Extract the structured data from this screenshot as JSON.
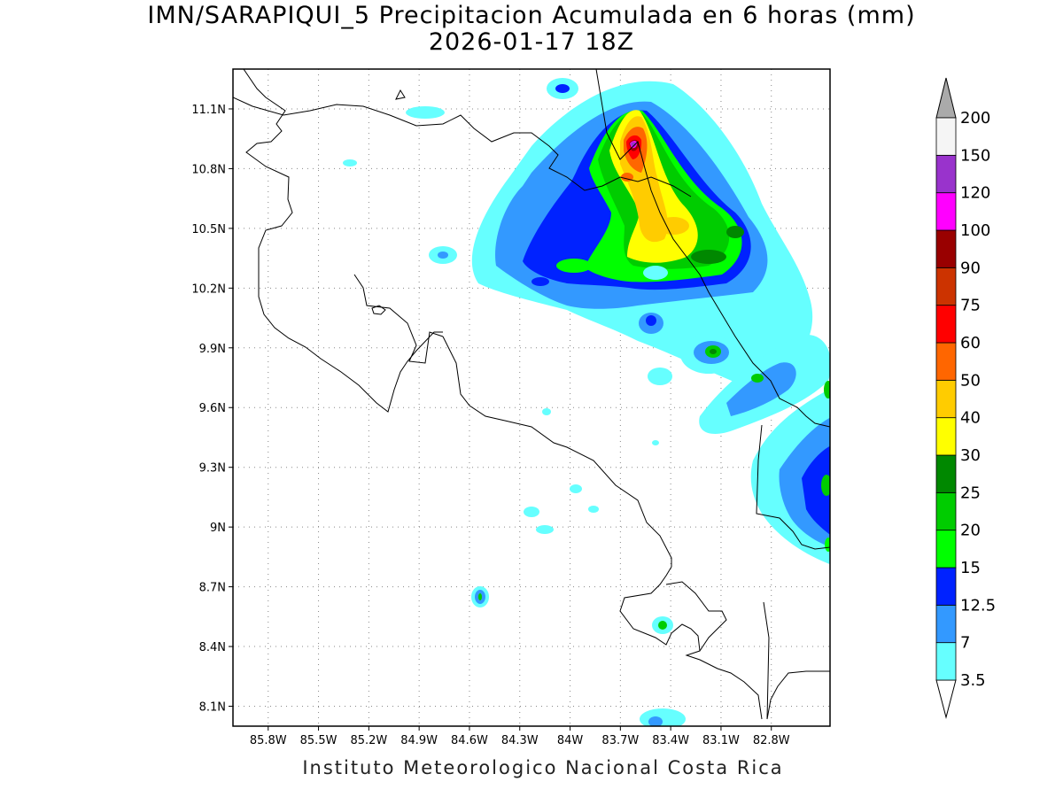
{
  "header": {
    "title_line1": "IMN/SARAPIQUI_5 Precipitacion Acumulada en 6 horas (mm)",
    "title_line2": "2026-01-17 18Z"
  },
  "footer": {
    "credit": "Instituto Meteorologico Nacional Costa Rica"
  },
  "map": {
    "lon_range": [
      -86.01,
      -82.45
    ],
    "lat_range": [
      8.0,
      11.3
    ],
    "lat_ticks": [
      {
        "value": 11.1,
        "label": "11.1N"
      },
      {
        "value": 10.8,
        "label": "10.8N"
      },
      {
        "value": 10.5,
        "label": "10.5N"
      },
      {
        "value": 10.2,
        "label": "10.2N"
      },
      {
        "value": 9.9,
        "label": "9.9N"
      },
      {
        "value": 9.6,
        "label": "9.6N"
      },
      {
        "value": 9.3,
        "label": "9.3N"
      },
      {
        "value": 9.0,
        "label": "9N"
      },
      {
        "value": 8.7,
        "label": "8.7N"
      },
      {
        "value": 8.4,
        "label": "8.4N"
      },
      {
        "value": 8.1,
        "label": "8.1N"
      }
    ],
    "lon_ticks": [
      {
        "value": -85.8,
        "label": "85.8W"
      },
      {
        "value": -85.5,
        "label": "85.5W"
      },
      {
        "value": -85.2,
        "label": "85.2W"
      },
      {
        "value": -84.9,
        "label": "84.9W"
      },
      {
        "value": -84.6,
        "label": "84.6W"
      },
      {
        "value": -84.3,
        "label": "84.3W"
      },
      {
        "value": -84.0,
        "label": "84W"
      },
      {
        "value": -83.7,
        "label": "83.7W"
      },
      {
        "value": -83.4,
        "label": "83.4W"
      },
      {
        "value": -83.1,
        "label": "83.1W"
      },
      {
        "value": -82.8,
        "label": "82.8W"
      }
    ],
    "grid": "dotted",
    "coastline_color": "#000000"
  },
  "legend": {
    "units": "mm",
    "levels": [
      {
        "label": "3.5",
        "color": "#66ffff"
      },
      {
        "label": "7",
        "color": "#3399ff"
      },
      {
        "label": "12.5",
        "color": "#0022ff"
      },
      {
        "label": "15",
        "color": "#00ff00"
      },
      {
        "label": "20",
        "color": "#00cc00"
      },
      {
        "label": "25",
        "color": "#008800"
      },
      {
        "label": "30",
        "color": "#ffff00"
      },
      {
        "label": "40",
        "color": "#ffcc00"
      },
      {
        "label": "50",
        "color": "#ff6600"
      },
      {
        "label": "60",
        "color": "#ff0000"
      },
      {
        "label": "75",
        "color": "#cc3300"
      },
      {
        "label": "90",
        "color": "#990000"
      },
      {
        "label": "100",
        "color": "#ff00ff"
      },
      {
        "label": "120",
        "color": "#9933cc"
      },
      {
        "label": "150",
        "color": "#f5f5f5"
      },
      {
        "label": "200",
        "color": "#aaaaaa"
      }
    ],
    "under_color": "#ffffff",
    "over_color": "#aaaaaa"
  }
}
